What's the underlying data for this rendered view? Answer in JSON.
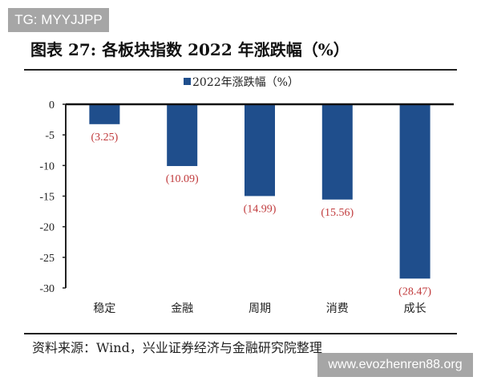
{
  "watermark_top": "TG: MYYJJPP",
  "watermark_bottom": "www.evozhenren88.org",
  "title": "图表 27:  各板块指数 2022 年涨跌幅（%）",
  "source": "资料来源：Wind，兴业证券经济与金融研究院整理",
  "chart_data": {
    "type": "bar",
    "categories": [
      "稳定",
      "金融",
      "周期",
      "消费",
      "成长"
    ],
    "series": [
      {
        "name": "2022年涨跌幅（%）",
        "values": [
          -3.25,
          -10.09,
          -14.99,
          -15.56,
          -28.47
        ]
      }
    ],
    "data_labels": [
      "(3.25)",
      "(10.09)",
      "(14.99)",
      "(15.56)",
      "(28.47)"
    ],
    "ylim": [
      -30,
      0
    ],
    "yticks": [
      "0",
      "-5",
      "-10",
      "-15",
      "-20",
      "-25",
      "-30"
    ],
    "legend": "top-center",
    "grid": false,
    "colors": {
      "bar": "#1f4e8c",
      "label": "#c0393b"
    }
  }
}
